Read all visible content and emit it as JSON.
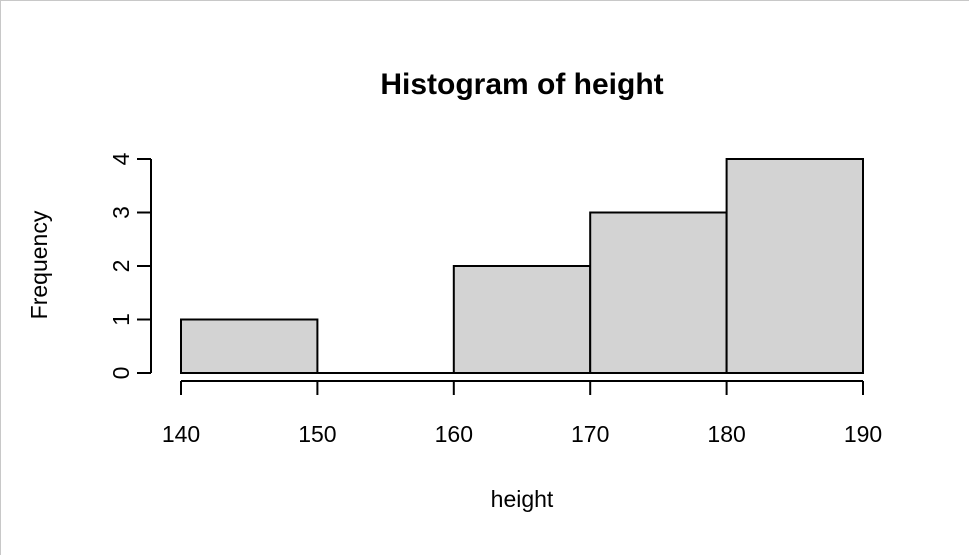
{
  "chart_data": {
    "type": "histogram",
    "title": "Histogram of height",
    "xlabel": "height",
    "ylabel": "Frequency",
    "bins": [
      {
        "from": 140,
        "to": 150,
        "count": 1
      },
      {
        "from": 150,
        "to": 160,
        "count": 0
      },
      {
        "from": 160,
        "to": 170,
        "count": 2
      },
      {
        "from": 170,
        "to": 180,
        "count": 3
      },
      {
        "from": 180,
        "to": 190,
        "count": 4
      }
    ],
    "x_ticks": [
      "140",
      "150",
      "160",
      "170",
      "180",
      "190"
    ],
    "y_ticks": [
      "0",
      "1",
      "2",
      "3",
      "4"
    ],
    "xlim": [
      140,
      190
    ],
    "ylim": [
      0,
      4
    ],
    "bar_fill": "#d3d3d3",
    "bar_stroke": "#000000",
    "grid": false,
    "legend": "none"
  }
}
